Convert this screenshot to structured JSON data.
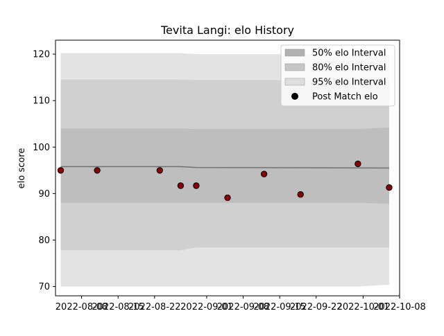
{
  "chart_data": {
    "type": "line",
    "title": "Tevita Langi: elo History",
    "xlabel": "",
    "ylabel": "elo score",
    "xlim": [
      "2022-08-03",
      "2022-10-08"
    ],
    "ylim": [
      68,
      123
    ],
    "x_ticks": [
      "2022-08-08",
      "2022-08-15",
      "2022-08-22",
      "2022-09-01",
      "2022-09-08",
      "2022-09-15",
      "2022-09-22",
      "2022-10-01",
      "2022-10-08"
    ],
    "y_ticks": [
      70,
      80,
      90,
      100,
      110,
      120
    ],
    "grid": false,
    "legend_position": "top-right",
    "series": [
      {
        "name": "Post Match elo",
        "kind": "scatter",
        "points": [
          {
            "x": "2022-08-04",
            "y": 95.0
          },
          {
            "x": "2022-08-11",
            "y": 95.0
          },
          {
            "x": "2022-08-23",
            "y": 95.0
          },
          {
            "x": "2022-08-27",
            "y": 91.7
          },
          {
            "x": "2022-08-30",
            "y": 91.7
          },
          {
            "x": "2022-09-05",
            "y": 89.1
          },
          {
            "x": "2022-09-12",
            "y": 94.2
          },
          {
            "x": "2022-09-19",
            "y": 89.8
          },
          {
            "x": "2022-09-30",
            "y": 96.4
          },
          {
            "x": "2022-10-06",
            "y": 91.3
          }
        ]
      },
      {
        "name": "mean",
        "kind": "line",
        "points": [
          {
            "x": "2022-08-04",
            "y": 95.8
          },
          {
            "x": "2022-08-27",
            "y": 95.8
          },
          {
            "x": "2022-08-30",
            "y": 95.6
          },
          {
            "x": "2022-10-06",
            "y": 95.5
          }
        ]
      }
    ],
    "intervals": [
      {
        "name": "95% elo Interval",
        "color": "#e3e3e3",
        "points": [
          {
            "x": "2022-08-04",
            "lo": 70.0,
            "hi": 120.2
          },
          {
            "x": "2022-08-27",
            "lo": 70.0,
            "hi": 120.2
          },
          {
            "x": "2022-08-30",
            "lo": 70.0,
            "hi": 120.0
          },
          {
            "x": "2022-09-30",
            "lo": 70.0,
            "hi": 120.0
          },
          {
            "x": "2022-10-06",
            "lo": 70.4,
            "hi": 120.0
          }
        ]
      },
      {
        "name": "80% elo Interval",
        "color": "#d0d0d0",
        "points": [
          {
            "x": "2022-08-04",
            "lo": 77.8,
            "hi": 114.5
          },
          {
            "x": "2022-08-27",
            "lo": 77.8,
            "hi": 114.5
          },
          {
            "x": "2022-08-30",
            "lo": 78.4,
            "hi": 114.4
          },
          {
            "x": "2022-09-30",
            "lo": 78.4,
            "hi": 114.4
          },
          {
            "x": "2022-10-06",
            "lo": 78.4,
            "hi": 114.4
          }
        ]
      },
      {
        "name": "50% elo Interval",
        "color": "#bebebe",
        "points": [
          {
            "x": "2022-08-04",
            "lo": 88.0,
            "hi": 104.0
          },
          {
            "x": "2022-08-27",
            "lo": 88.0,
            "hi": 104.0
          },
          {
            "x": "2022-08-30",
            "lo": 88.0,
            "hi": 103.9
          },
          {
            "x": "2022-09-30",
            "lo": 88.0,
            "hi": 103.9
          },
          {
            "x": "2022-10-06",
            "lo": 87.8,
            "hi": 104.2
          }
        ]
      }
    ],
    "legend": [
      {
        "label": "50% elo Interval",
        "swatch": "#b0b0b0",
        "kind": "patch"
      },
      {
        "label": "80% elo Interval",
        "swatch": "#c6c6c6",
        "kind": "patch"
      },
      {
        "label": "95% elo Interval",
        "swatch": "#dedede",
        "kind": "patch"
      },
      {
        "label": "Post Match elo",
        "swatch": "#000000",
        "kind": "marker"
      }
    ],
    "colors": {
      "marker_fill": "#8b0000",
      "marker_edge": "#000000",
      "mean_line": "#707070"
    }
  }
}
